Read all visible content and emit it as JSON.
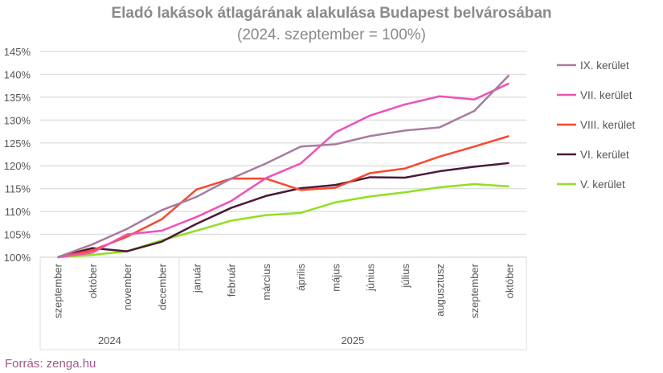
{
  "chart_data": {
    "type": "line",
    "title": "Eladó lakások átlagárának alakulása Budapest belvárosában",
    "subtitle": "(2024. szeptember = 100%)",
    "categories": [
      "szeptember",
      "október",
      "november",
      "december",
      "január",
      "február",
      "március",
      "április",
      "május",
      "június",
      "július",
      "augusztusz",
      "szeptember",
      "október"
    ],
    "groups": [
      {
        "label": "2024",
        "count": 4
      },
      {
        "label": "2025",
        "count": 10
      }
    ],
    "ylim": [
      100,
      145
    ],
    "yticks": [
      "100%",
      "105%",
      "110%",
      "115%",
      "120%",
      "125%",
      "130%",
      "135%",
      "140%",
      "145%"
    ],
    "grid": true,
    "legend": "right",
    "series": [
      {
        "name": "IX. kerület",
        "color": "#a87ba0",
        "values": [
          100,
          102.8,
          106.2,
          110.3,
          113.2,
          117.2,
          120.5,
          124.2,
          124.7,
          126.5,
          127.7,
          128.4,
          132,
          139.8
        ]
      },
      {
        "name": "VII. kerület",
        "color": "#f050b8",
        "values": [
          100,
          101,
          105,
          105.8,
          108.8,
          112.3,
          117.3,
          120.5,
          127.3,
          131,
          133.4,
          135.2,
          134.5,
          138
        ]
      },
      {
        "name": "VIII. kerület",
        "color": "#f84830",
        "values": [
          100,
          101.5,
          104.5,
          108.3,
          114.8,
          117.2,
          117.2,
          114.7,
          115.2,
          118.4,
          119.4,
          122,
          124.2,
          126.5
        ]
      },
      {
        "name": "VI. kerület",
        "color": "#4a1a38",
        "values": [
          100,
          102,
          101.3,
          103.4,
          107.3,
          110.8,
          113.4,
          115.1,
          115.8,
          117.5,
          117.4,
          118.8,
          119.8,
          120.6
        ]
      },
      {
        "name": "V. kerület",
        "color": "#90e020",
        "values": [
          100,
          100.5,
          101.3,
          103.7,
          105.8,
          108,
          109.2,
          109.7,
          112,
          113.3,
          114.2,
          115.3,
          116,
          115.5
        ]
      }
    ]
  },
  "source": "Forrás: zenga.hu"
}
